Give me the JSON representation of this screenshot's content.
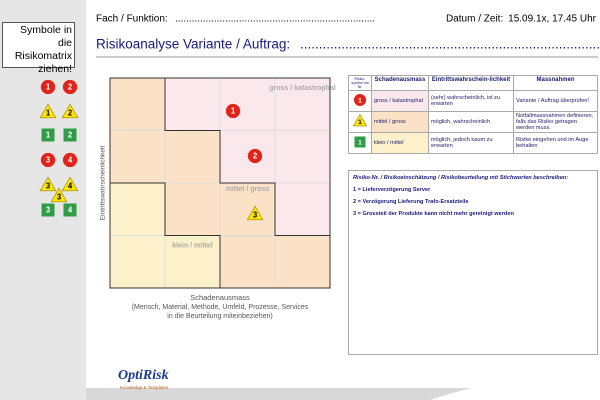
{
  "sidebar": {
    "instruction": "Symbole in die Risikomatrix ziehen!",
    "symbols": {
      "circles": [
        "1",
        "2",
        "3",
        "4"
      ],
      "triangles": [
        "1",
        "2",
        "3",
        "4",
        "3"
      ],
      "squares": [
        "1",
        "2",
        "3",
        "4"
      ]
    }
  },
  "header": {
    "subject_label": "Fach / Funktion:",
    "subject_value": "........................................................................",
    "date_label": "Datum / Zeit:",
    "date_value": "15.09.1x, 17.45 Uhr",
    "title": "Risikoanalyse Variante / Auftrag:",
    "title_value": "................................................................................"
  },
  "matrix": {
    "y_axis_label": "Eintrittswahrscheinlichkeit",
    "x_axis_label": "Schadenausmass",
    "x_axis_note": [
      "(Mensch, Material, Methode, Umfeld, Prozesse, Services",
      "in die Beurteilung miteinbeziehen)"
    ],
    "zones": [
      "gross / katastrophal",
      "mittel / gross",
      "klein / mittel"
    ],
    "placed": [
      "1",
      "2",
      "3"
    ]
  },
  "legend_table": {
    "headers": [
      "Risiko-symbol mit Nr.",
      "Schadenausmass",
      "Eintrittswahrschein-lichkeit",
      "Massnahmen"
    ],
    "rows": [
      {
        "symbol": "1",
        "damage": "gross / katastrophal",
        "probability": "(sehr) wahrscheinlich, ist zu erwarten",
        "measure": "Variante / Auftrag überprüfen!"
      },
      {
        "symbol": "1",
        "damage": "mittel / gross",
        "probability": "möglich, wahrscheinlich",
        "measure": "Notfallmassnahmen definieren, falls das Risiko getragen werden muss."
      },
      {
        "symbol": "1",
        "damage": "klein / mittel",
        "probability": "möglich, jedoch kaum zu erwarten",
        "measure": "Risiko eingehen und im Auge behalten"
      }
    ]
  },
  "notes": {
    "heading": "Risiko-Nr. / Risikoeinschätzung / Risikobeurteilung mit Stichworten beschreiben:",
    "items": [
      "1 = Lieferverzögerung Server",
      "2 = Verzögerung Lieferung Trafo-Ersatzteile",
      "3 = Grossteil der Produkte kann nicht mehr gereinigt werden"
    ]
  },
  "logo": {
    "name": "OptiRisk",
    "tagline": "Knowledge & Templates"
  }
}
